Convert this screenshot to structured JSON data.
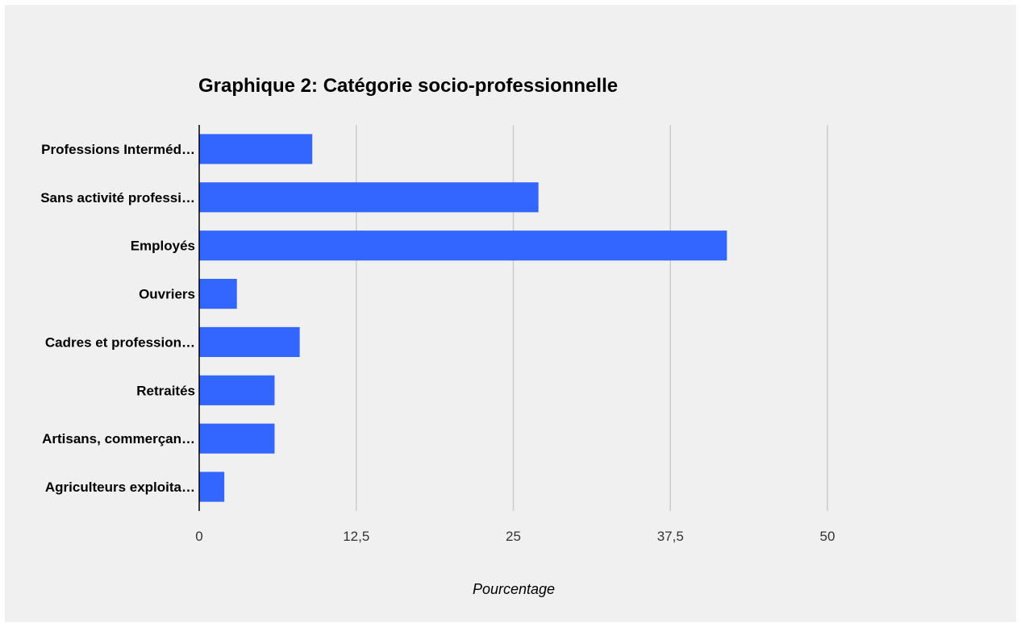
{
  "chart_data": {
    "type": "bar",
    "orientation": "horizontal",
    "title": "Graphique 2: Catégorie socio-professionnelle",
    "xlabel": "Pourcentage",
    "ylabel": "",
    "categories": [
      "Professions Interméd…",
      "Sans activité professi…",
      "Employés",
      "Ouvriers",
      "Cadres et profession…",
      "Retraités",
      "Artisans, commerçan…",
      "Agriculteurs exploita…"
    ],
    "values": [
      9,
      27,
      42,
      3,
      8,
      6,
      6,
      2
    ],
    "xlim": [
      0,
      62.5
    ],
    "xticks": [
      0,
      12.5,
      25,
      37.5,
      50
    ],
    "xtick_labels": [
      "0",
      "12,5",
      "25",
      "37,5",
      "50"
    ],
    "grid": true,
    "legend": "none",
    "bar_color": "#3366ff",
    "grid_color": "#cccccc",
    "background": "#f0f0f0"
  }
}
